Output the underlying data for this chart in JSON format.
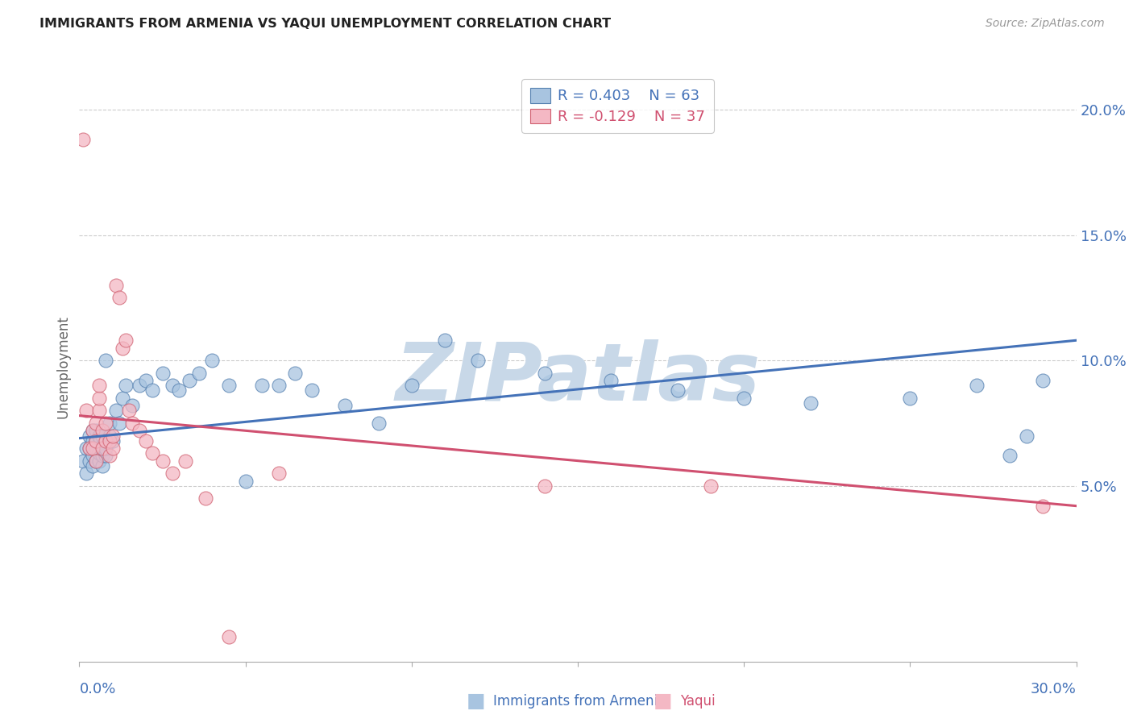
{
  "title": "IMMIGRANTS FROM ARMENIA VS YAQUI UNEMPLOYMENT CORRELATION CHART",
  "source": "Source: ZipAtlas.com",
  "ylabel": "Unemployment",
  "legend1_r_val": "0.403",
  "legend1_n_val": "63",
  "legend2_r_val": "-0.129",
  "legend2_n_val": "37",
  "blue_fill": "#a8c4e0",
  "pink_fill": "#f4b8c4",
  "blue_edge": "#5580b0",
  "pink_edge": "#d06070",
  "blue_line": "#4472b8",
  "pink_line": "#d05070",
  "blue_text": "#4472b8",
  "pink_text": "#d05070",
  "grid_color": "#cccccc",
  "watermark_color": "#c8d8e8",
  "xlim": [
    0.0,
    0.3
  ],
  "ylim": [
    -0.02,
    0.215
  ],
  "yticks": [
    0.05,
    0.1,
    0.15,
    0.2
  ],
  "ytick_labels": [
    "5.0%",
    "10.0%",
    "15.0%",
    "20.0%"
  ],
  "xtick_left": "0.0%",
  "xtick_right": "30.0%",
  "armenia_x": [
    0.001,
    0.002,
    0.002,
    0.003,
    0.003,
    0.003,
    0.004,
    0.004,
    0.004,
    0.004,
    0.005,
    0.005,
    0.005,
    0.005,
    0.006,
    0.006,
    0.006,
    0.006,
    0.007,
    0.007,
    0.007,
    0.007,
    0.008,
    0.008,
    0.008,
    0.009,
    0.009,
    0.01,
    0.011,
    0.012,
    0.013,
    0.014,
    0.016,
    0.018,
    0.02,
    0.022,
    0.025,
    0.028,
    0.03,
    0.033,
    0.036,
    0.04,
    0.045,
    0.05,
    0.055,
    0.06,
    0.065,
    0.07,
    0.08,
    0.09,
    0.1,
    0.11,
    0.12,
    0.14,
    0.16,
    0.18,
    0.2,
    0.22,
    0.25,
    0.27,
    0.28,
    0.285,
    0.29
  ],
  "armenia_y": [
    0.06,
    0.055,
    0.065,
    0.06,
    0.065,
    0.07,
    0.058,
    0.062,
    0.068,
    0.072,
    0.06,
    0.065,
    0.068,
    0.072,
    0.06,
    0.063,
    0.067,
    0.07,
    0.058,
    0.062,
    0.066,
    0.07,
    0.062,
    0.065,
    0.1,
    0.07,
    0.075,
    0.068,
    0.08,
    0.075,
    0.085,
    0.09,
    0.082,
    0.09,
    0.092,
    0.088,
    0.095,
    0.09,
    0.088,
    0.092,
    0.095,
    0.1,
    0.09,
    0.052,
    0.09,
    0.09,
    0.095,
    0.088,
    0.082,
    0.075,
    0.09,
    0.108,
    0.1,
    0.095,
    0.092,
    0.088,
    0.085,
    0.083,
    0.085,
    0.09,
    0.062,
    0.07,
    0.092
  ],
  "yaqui_x": [
    0.001,
    0.002,
    0.003,
    0.004,
    0.004,
    0.005,
    0.005,
    0.005,
    0.006,
    0.006,
    0.006,
    0.007,
    0.007,
    0.008,
    0.008,
    0.009,
    0.009,
    0.01,
    0.01,
    0.011,
    0.012,
    0.013,
    0.014,
    0.015,
    0.016,
    0.018,
    0.02,
    0.022,
    0.025,
    0.028,
    0.032,
    0.038,
    0.045,
    0.06,
    0.14,
    0.19,
    0.29
  ],
  "yaqui_y": [
    0.188,
    0.08,
    0.065,
    0.065,
    0.072,
    0.06,
    0.068,
    0.075,
    0.08,
    0.085,
    0.09,
    0.065,
    0.072,
    0.068,
    0.075,
    0.062,
    0.068,
    0.065,
    0.07,
    0.13,
    0.125,
    0.105,
    0.108,
    0.08,
    0.075,
    0.072,
    0.068,
    0.063,
    0.06,
    0.055,
    0.06,
    0.045,
    -0.01,
    0.055,
    0.05,
    0.05,
    0.042
  ],
  "blue_trendline_x": [
    0.0,
    0.3
  ],
  "blue_trendline_y": [
    0.069,
    0.108
  ],
  "pink_trendline_x": [
    0.0,
    0.3
  ],
  "pink_trendline_y": [
    0.078,
    0.042
  ]
}
